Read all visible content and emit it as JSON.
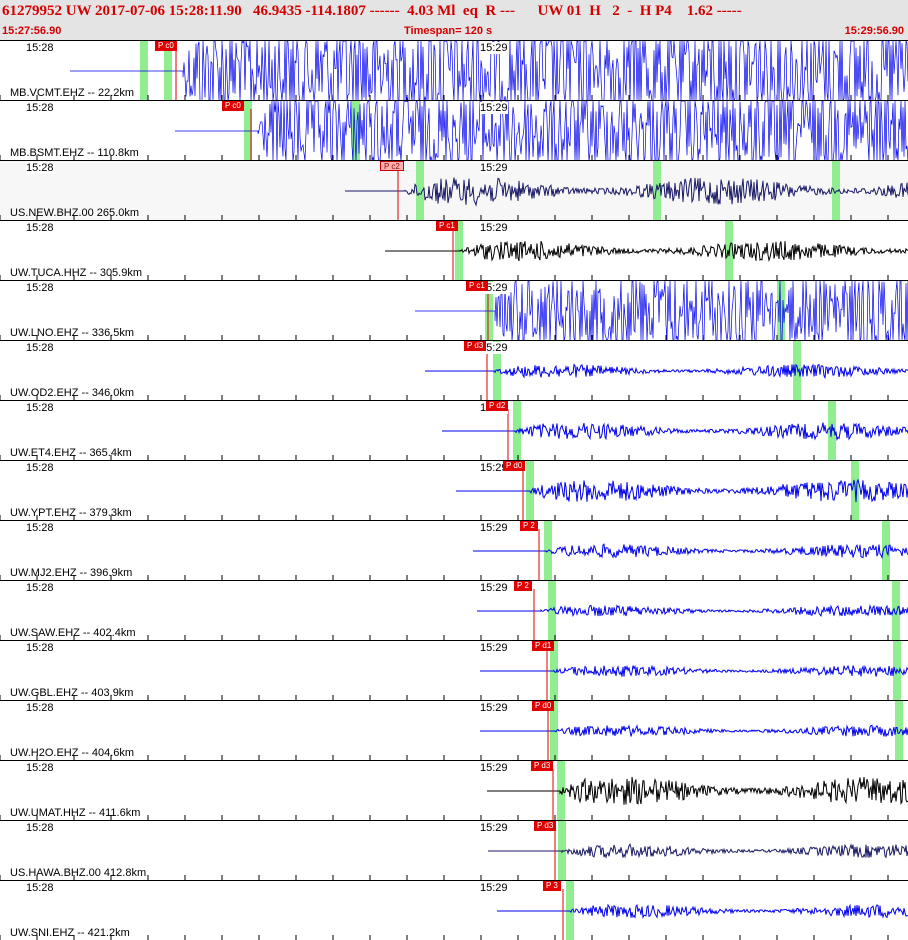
{
  "header": {
    "title": "61279952 UW 2017-07-06 15:28:11.90   46.9435 -114.1807 ------  4.03 Ml  eq  R ---      UW 01  H   2  -  H P4    1.62 -----",
    "start_time": "15:27:56.90",
    "timespan": "Timespan= 120 s",
    "end_time": "15:29:56.90"
  },
  "colors": {
    "blue": "#0000ee",
    "navy": "#1a1a66",
    "black": "#000000",
    "pick": "#e00000",
    "green": "#90ee90"
  },
  "channels": [
    {
      "station": "MB.VCMT.EHZ -- 22.2km",
      "pick": "P c0",
      "color": "blue",
      "amp": 1.0,
      "t1": "15:28",
      "t2": "15:29",
      "shaded": false
    },
    {
      "station": "MB.BSMT.EHZ -- 110.8km",
      "pick": "P c0",
      "color": "blue",
      "amp": 0.8,
      "t1": "15:28",
      "t2": "15:29",
      "shaded": false
    },
    {
      "station": "US.NEW.BHZ.00 265.0km",
      "pick": "P c2",
      "color": "navy",
      "amp": 0.25,
      "t1": "15:28",
      "t2": "15:29",
      "shaded": true
    },
    {
      "station": "UW.TUCA.HHZ -- 305.9km",
      "pick": "P c1",
      "color": "black",
      "amp": 0.18,
      "t1": "15:28",
      "t2": "15:29",
      "shaded": false
    },
    {
      "station": "UW.LNO.EHZ -- 336.5km",
      "pick": "P c1",
      "color": "blue",
      "amp": 0.7,
      "t1": "15:28",
      "t2": "15:29",
      "shaded": false
    },
    {
      "station": "UW.OD2.EHZ -- 346.0km",
      "pick": "P d3",
      "color": "blue",
      "amp": 0.12,
      "t1": "15:28",
      "t2": "15:29",
      "shaded": false
    },
    {
      "station": "UW.ET4.EHZ -- 365.4km",
      "pick": "P d2",
      "color": "blue",
      "amp": 0.15,
      "t1": "15:28",
      "t2": "15:29",
      "shaded": false
    },
    {
      "station": "UW.YPT.EHZ -- 379.3km",
      "pick": "P d0",
      "color": "blue",
      "amp": 0.2,
      "t1": "15:28",
      "t2": "15:29",
      "shaded": false
    },
    {
      "station": "UW.MJ2.EHZ -- 396.9km",
      "pick": "P 2",
      "color": "blue",
      "amp": 0.12,
      "t1": "15:28",
      "t2": "15:29",
      "shaded": false
    },
    {
      "station": "UW.SAW.EHZ -- 402.4km",
      "pick": "P 2",
      "color": "blue",
      "amp": 0.1,
      "t1": "15:28",
      "t2": "15:29",
      "shaded": false
    },
    {
      "station": "UW.GBL.EHZ -- 403.9km",
      "pick": "P d1",
      "color": "blue",
      "amp": 0.1,
      "t1": "15:28",
      "t2": "15:29",
      "shaded": false
    },
    {
      "station": "UW.H2O.EHZ -- 404.6km",
      "pick": "P d0",
      "color": "blue",
      "amp": 0.1,
      "t1": "15:28",
      "t2": "15:29",
      "shaded": false
    },
    {
      "station": "UW.UMAT.HHZ -- 411.6km",
      "pick": "P d3",
      "color": "black",
      "amp": 0.25,
      "t1": "15:28",
      "t2": "15:29",
      "shaded": false
    },
    {
      "station": "US.HAWA.BHZ.00 412.8km",
      "pick": "P d3",
      "color": "navy",
      "amp": 0.12,
      "t1": "15:28",
      "t2": "15:29",
      "shaded": false
    },
    {
      "station": "UW.SNI.EHZ -- 421.2km",
      "pick": "P 3",
      "color": "blue",
      "amp": 0.12,
      "t1": "15:28",
      "t2": "15:29",
      "shaded": false
    }
  ]
}
